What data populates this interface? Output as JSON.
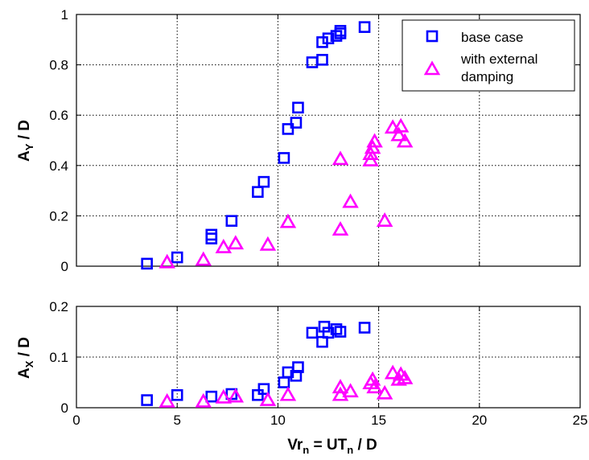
{
  "chart_data": [
    {
      "type": "scatter",
      "panel": "top",
      "ylabel": {
        "main": "A",
        "sub": "Y",
        "rest": " / D"
      },
      "xlim": [
        0,
        25
      ],
      "ylim": [
        0,
        1
      ],
      "xticks": [
        "0",
        "5",
        "10",
        "15",
        "20",
        "25"
      ],
      "yticks": [
        "0",
        "0.2",
        "0.4",
        "0.6",
        "0.8",
        "1"
      ],
      "xtick_values": [
        0,
        5,
        10,
        15,
        20,
        25
      ],
      "ytick_values": [
        0,
        0.2,
        0.4,
        0.6,
        0.8,
        1
      ],
      "grid": true,
      "legend_position": "top-right",
      "series": [
        {
          "name": "base case",
          "marker": "square",
          "color": "#0000ff",
          "points": [
            [
              3.5,
              0.01
            ],
            [
              5.0,
              0.035
            ],
            [
              6.7,
              0.11
            ],
            [
              6.7,
              0.125
            ],
            [
              7.7,
              0.18
            ],
            [
              9.0,
              0.295
            ],
            [
              9.3,
              0.335
            ],
            [
              10.3,
              0.43
            ],
            [
              10.5,
              0.545
            ],
            [
              10.9,
              0.57
            ],
            [
              11.0,
              0.63
            ],
            [
              11.7,
              0.81
            ],
            [
              12.2,
              0.82
            ],
            [
              12.2,
              0.89
            ],
            [
              12.5,
              0.905
            ],
            [
              12.9,
              0.915
            ],
            [
              13.1,
              0.925
            ],
            [
              13.1,
              0.935
            ],
            [
              14.3,
              0.95
            ]
          ]
        },
        {
          "name": "with external damping",
          "name_lines": [
            "with external",
            "damping"
          ],
          "marker": "triangle",
          "color": "#ff00ff",
          "points": [
            [
              4.5,
              0.015
            ],
            [
              6.3,
              0.025
            ],
            [
              7.3,
              0.075
            ],
            [
              7.9,
              0.09
            ],
            [
              9.5,
              0.085
            ],
            [
              10.5,
              0.175
            ],
            [
              13.1,
              0.145
            ],
            [
              13.1,
              0.425
            ],
            [
              13.6,
              0.255
            ],
            [
              14.6,
              0.42
            ],
            [
              14.6,
              0.445
            ],
            [
              14.7,
              0.47
            ],
            [
              14.8,
              0.495
            ],
            [
              15.3,
              0.18
            ],
            [
              15.7,
              0.55
            ],
            [
              16.0,
              0.52
            ],
            [
              16.1,
              0.555
            ],
            [
              16.3,
              0.495
            ]
          ]
        }
      ]
    },
    {
      "type": "scatter",
      "panel": "bottom",
      "xlabel": {
        "main1": "Vr",
        "sub1": "n",
        "mid": " = UT",
        "sub2": "n",
        "rest": " / D"
      },
      "ylabel": {
        "main": "A",
        "sub": "X",
        "rest": " / D"
      },
      "xlim": [
        0,
        25
      ],
      "ylim": [
        0,
        0.2
      ],
      "xticks": [
        "0",
        "5",
        "10",
        "15",
        "20",
        "25"
      ],
      "yticks": [
        "0",
        "0.1",
        "0.2"
      ],
      "xtick_values": [
        0,
        5,
        10,
        15,
        20,
        25
      ],
      "ytick_values": [
        0,
        0.1,
        0.2
      ],
      "grid": true,
      "series": [
        {
          "name": "base case",
          "marker": "square",
          "color": "#0000ff",
          "points": [
            [
              3.5,
              0.015
            ],
            [
              5.0,
              0.025
            ],
            [
              6.7,
              0.022
            ],
            [
              7.7,
              0.027
            ],
            [
              9.0,
              0.025
            ],
            [
              9.3,
              0.037
            ],
            [
              10.3,
              0.05
            ],
            [
              10.5,
              0.07
            ],
            [
              10.9,
              0.063
            ],
            [
              11.0,
              0.08
            ],
            [
              11.7,
              0.148
            ],
            [
              12.2,
              0.13
            ],
            [
              12.3,
              0.16
            ],
            [
              12.5,
              0.148
            ],
            [
              12.9,
              0.155
            ],
            [
              13.1,
              0.15
            ],
            [
              14.3,
              0.158
            ]
          ]
        },
        {
          "name": "with external damping",
          "marker": "triangle",
          "color": "#ff00ff",
          "points": [
            [
              4.5,
              0.012
            ],
            [
              6.3,
              0.012
            ],
            [
              7.3,
              0.02
            ],
            [
              7.9,
              0.022
            ],
            [
              9.5,
              0.015
            ],
            [
              10.5,
              0.025
            ],
            [
              13.1,
              0.025
            ],
            [
              13.1,
              0.04
            ],
            [
              13.6,
              0.032
            ],
            [
              14.6,
              0.048
            ],
            [
              14.7,
              0.055
            ],
            [
              14.8,
              0.04
            ],
            [
              15.3,
              0.028
            ],
            [
              15.7,
              0.068
            ],
            [
              16.0,
              0.055
            ],
            [
              16.1,
              0.065
            ],
            [
              16.3,
              0.058
            ]
          ]
        }
      ]
    }
  ]
}
